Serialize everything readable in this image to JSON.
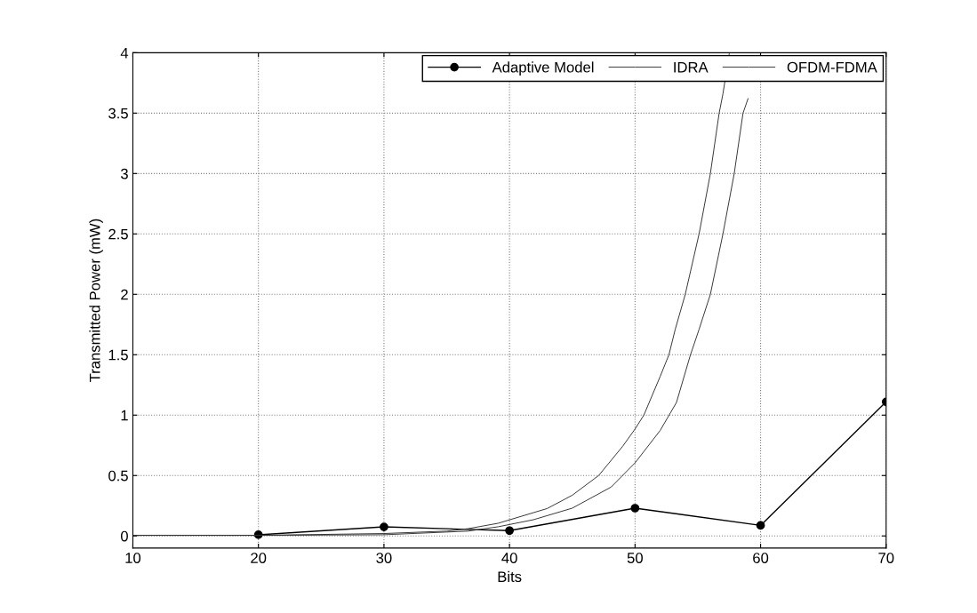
{
  "chart_data": {
    "type": "line",
    "xlabel": "Bits",
    "ylabel": "Transmitted Power (mW)",
    "xlim": [
      10,
      70
    ],
    "xticks": [
      10,
      20,
      30,
      40,
      50,
      60,
      70
    ],
    "ylim": [
      -0.1,
      4
    ],
    "yticks": [
      0,
      0.5,
      1,
      1.5,
      2,
      2.5,
      3,
      3.5,
      4
    ],
    "grid": true,
    "legend": "top right",
    "series": [
      {
        "name": "Adaptive Model",
        "color": "#000000",
        "marker": "circle",
        "x": [
          20,
          30,
          40,
          50,
          60,
          70
        ],
        "values": [
          0.01,
          0.075,
          0.044,
          0.23,
          0.087,
          1.11
        ]
      },
      {
        "name": "IDRA",
        "color": "#333333",
        "marker": "none",
        "x": [
          10,
          20,
          30,
          35,
          36.7,
          39.1,
          43,
          45,
          47.1,
          49,
          50,
          50.7,
          52,
          52.7,
          53.2,
          54,
          55.1,
          56,
          56.7,
          57,
          57.5
        ],
        "values": [
          0.005,
          0.005,
          0.02,
          0.04,
          0.06,
          0.105,
          0.227,
          0.337,
          0.5,
          0.74,
          0.885,
          1.0,
          1.32,
          1.5,
          1.71,
          2.0,
          2.5,
          3.0,
          3.5,
          3.66,
          3.99
        ]
      },
      {
        "name": "OFDM-FDMA",
        "color": "#333333",
        "marker": "none",
        "x": [
          10,
          20,
          30,
          36.7,
          39.1,
          41.9,
          45,
          48.1,
          50,
          52,
          53.3,
          54.4,
          55.1,
          56,
          57,
          57.9,
          58.6,
          59
        ],
        "values": [
          0.005,
          0.005,
          0.01,
          0.04,
          0.076,
          0.134,
          0.23,
          0.405,
          0.605,
          0.873,
          1.105,
          1.495,
          1.71,
          2.0,
          2.5,
          3.0,
          3.5,
          3.62
        ]
      }
    ]
  }
}
